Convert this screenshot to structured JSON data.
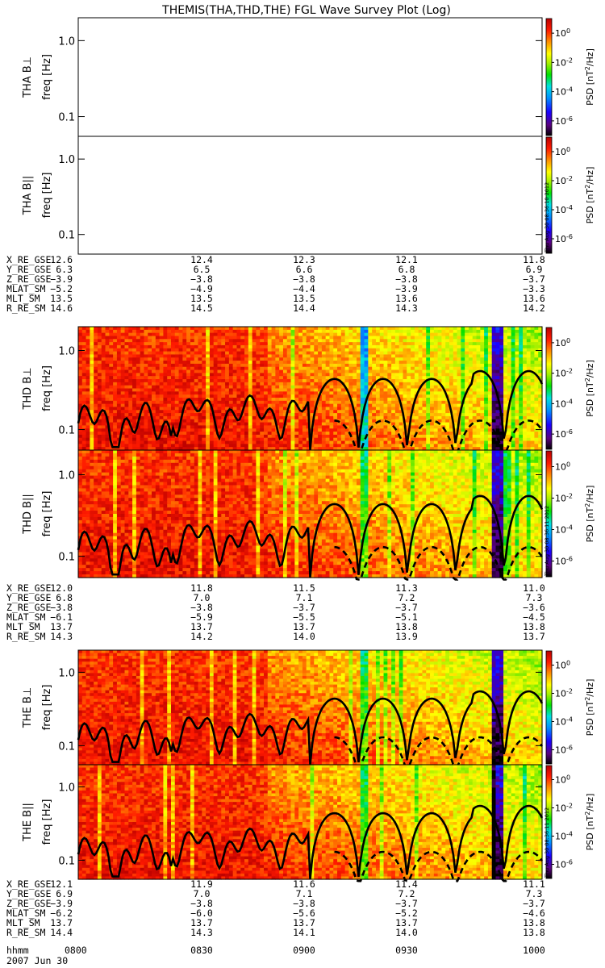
{
  "chart_data": {
    "type": "heatmap",
    "title": "THEMIS(THA,THD,THE) FGL Wave Survey Plot (Log)",
    "x_tick_labels": [
      "0800",
      "0830",
      "0900",
      "0930",
      "1000"
    ],
    "x_axis_label": "hhmm",
    "date_label": "2007 Jun 30",
    "y_axis": {
      "label": "freq [Hz]",
      "scale": "log",
      "tick_labels": [
        "1.0",
        "0.1"
      ],
      "tick_values": [
        1.0,
        0.1
      ]
    },
    "colorbar": {
      "label": "PSD [nT²/Hz]",
      "scale": "log",
      "tick_labels": [
        "10^0",
        "10^-2",
        "10^-4",
        "10^-6"
      ],
      "tick_exponents": [
        0,
        -2,
        -4,
        -6
      ],
      "range_exponent": [
        -7,
        1
      ]
    },
    "timestamps": [
      "Thu Aug 30 08:36:10 2012",
      "Thu Aug 30 08:36:11 2012",
      "Thu Aug 30 08:36:11 2012"
    ],
    "panels": [
      {
        "label": "THA B⊥",
        "has_data": false
      },
      {
        "label": "THA B||",
        "has_data": false
      },
      {
        "label": "THD B⊥",
        "has_data": true
      },
      {
        "label": "THD B||",
        "has_data": true
      },
      {
        "label": "THE B⊥",
        "has_data": true
      },
      {
        "label": "THE B||",
        "has_data": true
      }
    ],
    "ephemeris": [
      {
        "spacecraft": "THA",
        "rows": [
          {
            "name": "X_RE_GSE",
            "values": [
              "12.6",
              "12.4",
              "12.3",
              "12.1",
              "11.8"
            ]
          },
          {
            "name": "Y_RE_GSE",
            "values": [
              "6.3",
              "6.5",
              "6.6",
              "6.8",
              "6.9"
            ]
          },
          {
            "name": "Z_RE_GSE",
            "values": [
              "−3.9",
              "−3.8",
              "−3.8",
              "−3.8",
              "−3.7"
            ]
          },
          {
            "name": "MLAT_SM",
            "values": [
              "−5.2",
              "−4.9",
              "−4.4",
              "−3.9",
              "−3.3"
            ]
          },
          {
            "name": "MLT_SM",
            "values": [
              "13.5",
              "13.5",
              "13.5",
              "13.6",
              "13.6"
            ]
          },
          {
            "name": "R_RE_SM",
            "values": [
              "14.6",
              "14.5",
              "14.4",
              "14.3",
              "14.2"
            ]
          }
        ]
      },
      {
        "spacecraft": "THD",
        "rows": [
          {
            "name": "X_RE_GSE",
            "values": [
              "12.0",
              "11.8",
              "11.5",
              "11.3",
              "11.0"
            ]
          },
          {
            "name": "Y_RE_GSE",
            "values": [
              "6.8",
              "7.0",
              "7.1",
              "7.2",
              "7.3"
            ]
          },
          {
            "name": "Z_RE_GSE",
            "values": [
              "−3.8",
              "−3.8",
              "−3.7",
              "−3.7",
              "−3.6"
            ]
          },
          {
            "name": "MLAT_SM",
            "values": [
              "−6.1",
              "−5.9",
              "−5.5",
              "−5.1",
              "−4.5"
            ]
          },
          {
            "name": "MLT_SM",
            "values": [
              "13.7",
              "13.7",
              "13.7",
              "13.8",
              "13.8"
            ]
          },
          {
            "name": "R_RE_SM",
            "values": [
              "14.3",
              "14.2",
              "14.0",
              "13.9",
              "13.7"
            ]
          }
        ]
      },
      {
        "spacecraft": "THE",
        "rows": [
          {
            "name": "X_RE_GSE",
            "values": [
              "12.1",
              "11.9",
              "11.6",
              "11.4",
              "11.1"
            ]
          },
          {
            "name": "Y_RE_GSE",
            "values": [
              "6.9",
              "7.0",
              "7.1",
              "7.2",
              "7.3"
            ]
          },
          {
            "name": "Z_RE_GSE",
            "values": [
              "−3.9",
              "−3.8",
              "−3.8",
              "−3.7",
              "−3.7"
            ]
          },
          {
            "name": "MLAT_SM",
            "values": [
              "−6.2",
              "−6.0",
              "−5.6",
              "−5.2",
              "−4.6"
            ]
          },
          {
            "name": "MLT_SM",
            "values": [
              "13.7",
              "13.7",
              "13.7",
              "13.7",
              "13.8"
            ]
          },
          {
            "name": "R_RE_SM",
            "values": [
              "14.4",
              "14.3",
              "14.1",
              "14.0",
              "13.8"
            ]
          }
        ]
      }
    ]
  }
}
